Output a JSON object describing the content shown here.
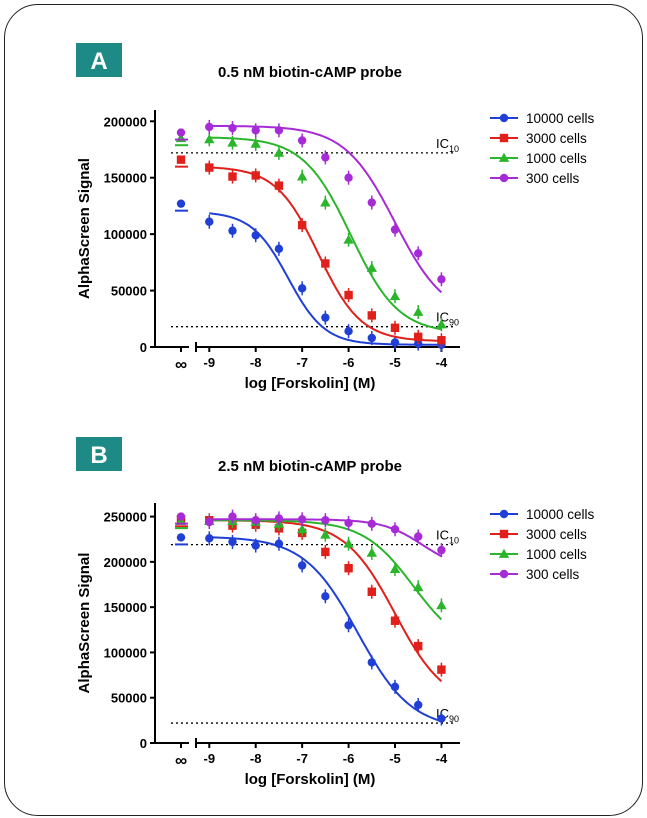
{
  "colors": {
    "badge": "#1d8a86",
    "series": [
      "#1f3fd6",
      "#e0201b",
      "#2bb52b",
      "#a62bd6"
    ],
    "axis": "#000000"
  },
  "chart_data": [
    {
      "panel_label": "A",
      "title": "0.5 nM biotin-cAMP probe",
      "type": "scatter",
      "xlabel": "log [Forskolin] (M)",
      "ylabel": "AlphaScreen Signal",
      "x_ticks": [
        "-9",
        "-8",
        "-7",
        "-6",
        "-5",
        "-4"
      ],
      "x_zero_label": "∞",
      "y_ticks": [
        "0",
        "50000",
        "100000",
        "150000",
        "200000"
      ],
      "xlim": [
        -9.2,
        -3.6
      ],
      "ylim": [
        0,
        210000
      ],
      "x": [
        -9,
        -8.5,
        -8,
        -7.5,
        -7,
        -6.5,
        -6,
        -5.5,
        -5,
        -4.5,
        -4
      ],
      "series": [
        {
          "name": "10000 cells",
          "marker": "circle",
          "zero_conc": 127000,
          "values": [
            111000,
            103000,
            99000,
            87000,
            52000,
            26000,
            14000,
            8000,
            4000,
            3000,
            2000
          ],
          "fit": {
            "top": 120000,
            "bottom": 2000,
            "logec50": -7.3,
            "hill": 1.1
          }
        },
        {
          "name": "3000 cells",
          "marker": "square",
          "zero_conc": 166000,
          "values": [
            159000,
            151000,
            152000,
            143000,
            108000,
            74000,
            46000,
            28000,
            17000,
            9000,
            6000
          ],
          "fit": {
            "top": 160000,
            "bottom": 5000,
            "logec50": -6.65,
            "hill": 0.95
          }
        },
        {
          "name": "1000 cells",
          "marker": "triangle",
          "zero_conc": 185000,
          "values": [
            184000,
            181000,
            180000,
            172000,
            151000,
            128000,
            95000,
            70000,
            45000,
            31000,
            20000
          ],
          "fit": {
            "top": 186000,
            "bottom": 12000,
            "logec50": -5.95,
            "hill": 0.85
          }
        },
        {
          "name": "300 cells",
          "marker": "circle",
          "zero_conc": 190000,
          "values": [
            195000,
            194000,
            192000,
            192000,
            183000,
            168000,
            150000,
            128000,
            104000,
            83000,
            60000
          ],
          "fit": {
            "top": 196000,
            "bottom": 25000,
            "logec50": -5.0,
            "hill": 0.8
          }
        }
      ],
      "reference_lines": [
        {
          "label": "IC",
          "sub": "10",
          "y": 172000
        },
        {
          "label": "IC",
          "sub": "90",
          "y": 18000
        }
      ],
      "legend": "right",
      "grid": false
    },
    {
      "panel_label": "B",
      "title": "2.5 nM biotin-cAMP probe",
      "type": "scatter",
      "xlabel": "log [Forskolin] (M)",
      "ylabel": "AlphaScreen Signal",
      "x_ticks": [
        "-9",
        "-8",
        "-7",
        "-6",
        "-5",
        "-4"
      ],
      "x_zero_label": "∞",
      "y_ticks": [
        "0",
        "50000",
        "100000",
        "150000",
        "200000",
        "250000"
      ],
      "xlim": [
        -9.2,
        -3.6
      ],
      "ylim": [
        0,
        265000
      ],
      "x": [
        -9,
        -8.5,
        -8,
        -7.5,
        -7,
        -6.5,
        -6,
        -5.5,
        -5,
        -4.5,
        -4
      ],
      "series": [
        {
          "name": "10000 cells",
          "marker": "circle",
          "zero_conc": 227000,
          "values": [
            226000,
            222000,
            218000,
            220000,
            196000,
            162000,
            130000,
            89000,
            62000,
            42000,
            27000
          ],
          "fit": {
            "top": 228000,
            "bottom": 15000,
            "logec50": -5.8,
            "hill": 0.75
          }
        },
        {
          "name": "3000 cells",
          "marker": "square",
          "zero_conc": 247000,
          "values": [
            246000,
            240000,
            241000,
            237000,
            232000,
            211000,
            193000,
            167000,
            135000,
            107000,
            81000
          ],
          "fit": {
            "top": 246000,
            "bottom": 40000,
            "logec50": -5.0,
            "hill": 0.8
          }
        },
        {
          "name": "1000 cells",
          "marker": "triangle",
          "zero_conc": 245000,
          "values": [
            245000,
            245000,
            244000,
            242000,
            236000,
            230000,
            220000,
            210000,
            192000,
            172000,
            152000
          ],
          "fit": {
            "top": 246000,
            "bottom": 100000,
            "logec50": -4.6,
            "hill": 0.8
          }
        },
        {
          "name": "300 cells",
          "marker": "circle",
          "zero_conc": 250000,
          "values": [
            244000,
            250000,
            246000,
            248000,
            247000,
            246000,
            243000,
            242000,
            236000,
            228000,
            213000
          ],
          "fit": {
            "top": 247000,
            "bottom": 190000,
            "logec50": -4.4,
            "hill": 1.0
          }
        }
      ],
      "reference_lines": [
        {
          "label": "IC",
          "sub": "10",
          "y": 219000
        },
        {
          "label": "IC",
          "sub": "90",
          "y": 22000
        }
      ],
      "legend": "right",
      "grid": false
    }
  ]
}
